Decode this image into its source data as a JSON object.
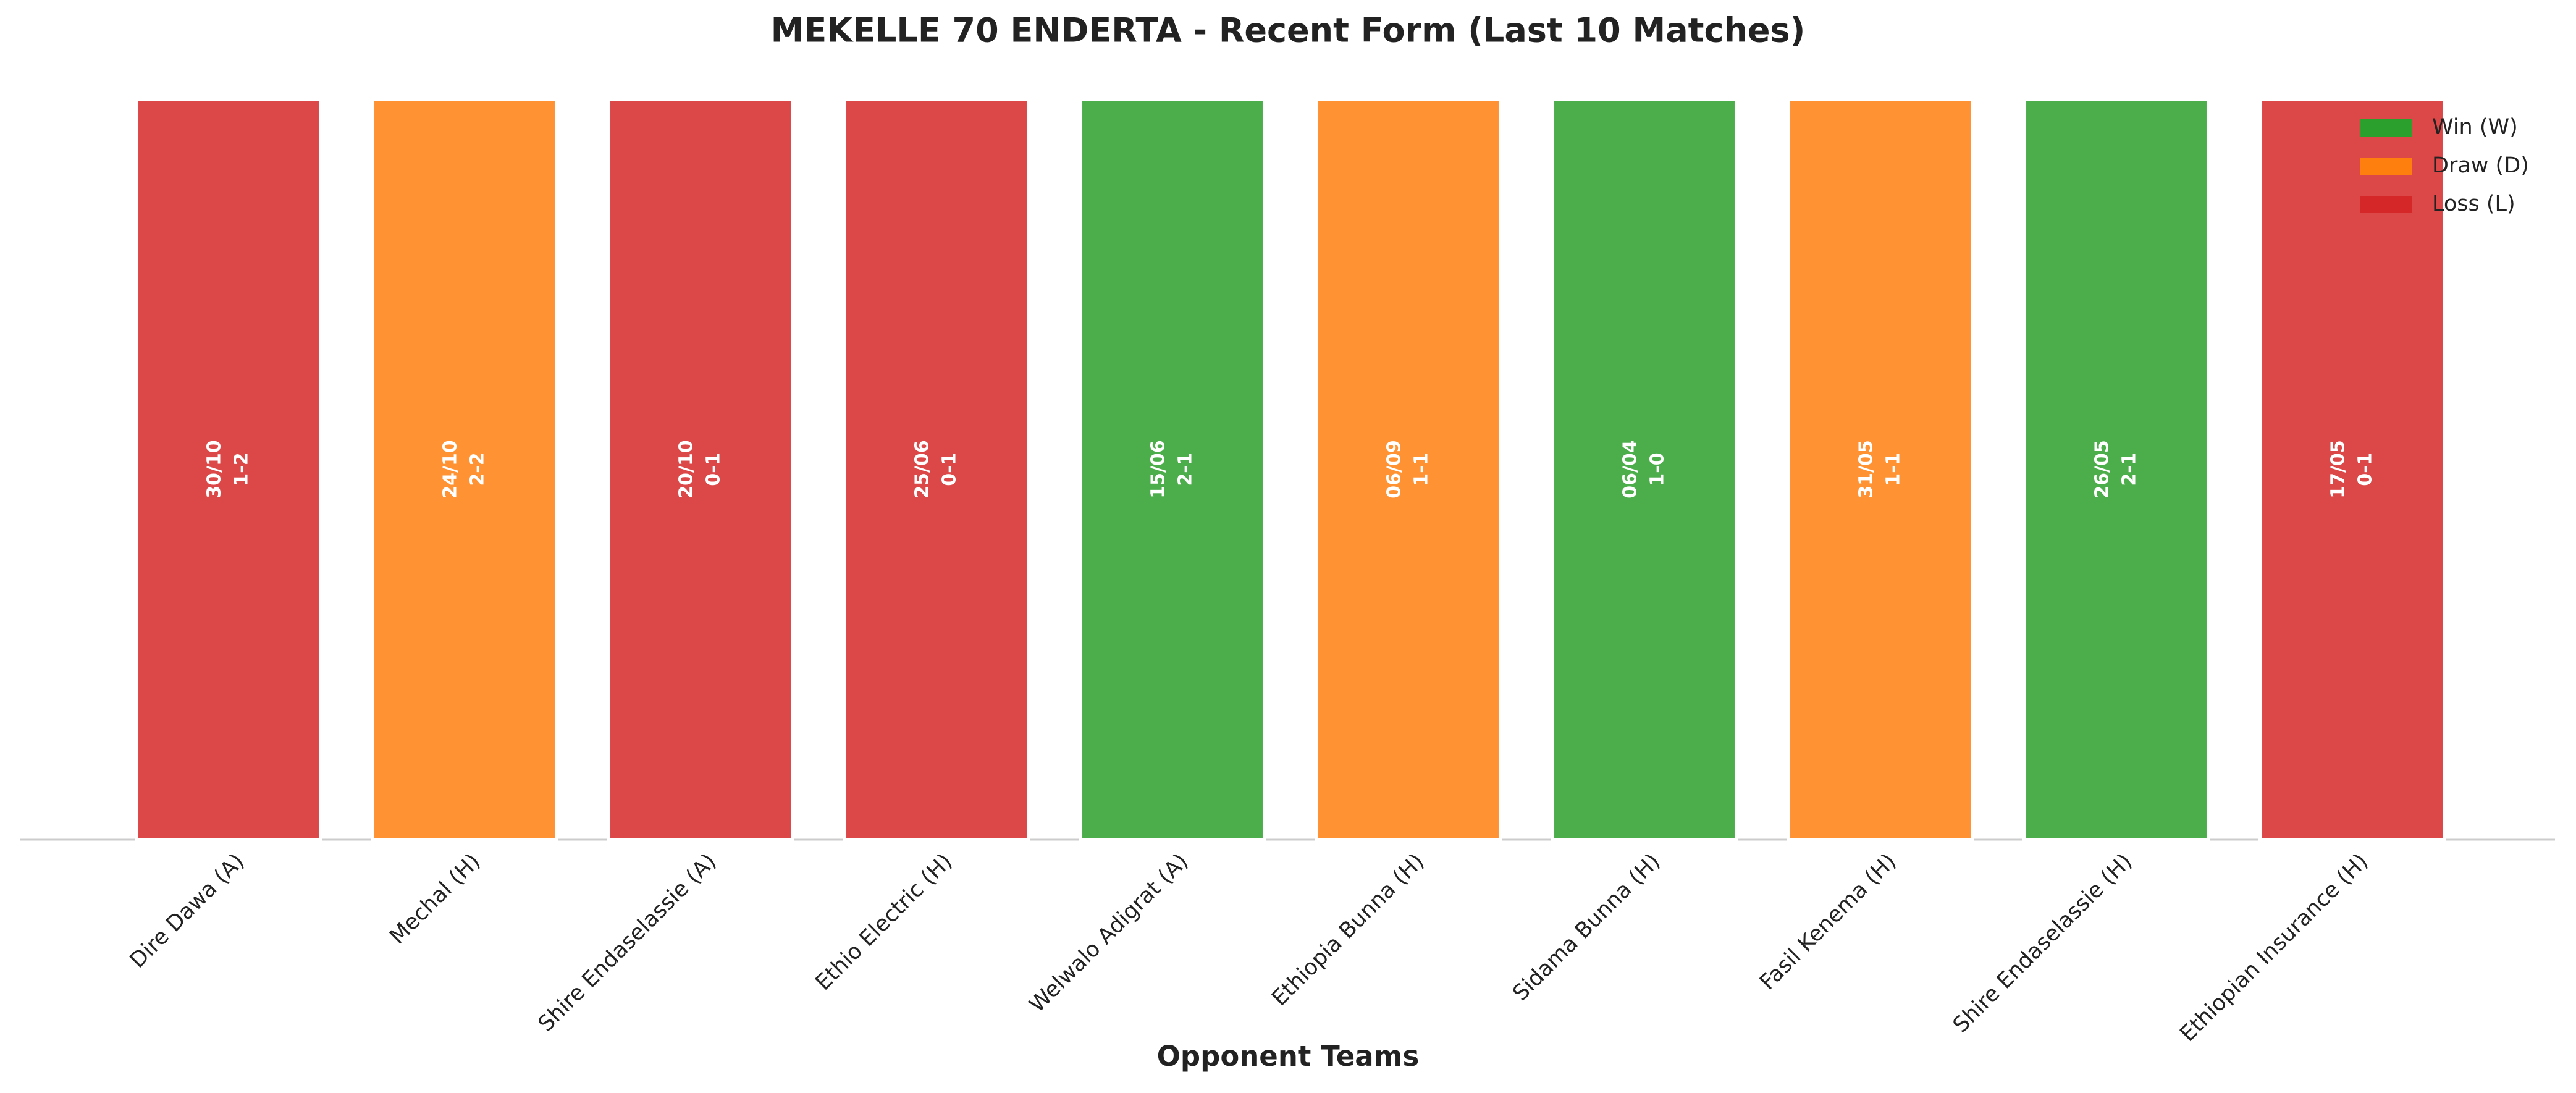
{
  "chart_data": {
    "type": "bar",
    "title": "MEKELLE 70 ENDERTA - Recent Form (Last 10 Matches)",
    "xlabel": "Opponent Teams",
    "categories": [
      "Dire Dawa (A)",
      "Mechal (H)",
      "Shire Endaselassie (A)",
      "Ethio Electric (H)",
      "Welwalo Adigrat (A)",
      "Ethiopia Bunna (H)",
      "Sidama Bunna (H)",
      "Fasil Kenema (H)",
      "Shire Endaselassie (H)",
      "Ethiopian Insurance (H)"
    ],
    "values": [
      1,
      1,
      1,
      1,
      1,
      1,
      1,
      1,
      1,
      1
    ],
    "bar_labels": [
      [
        "30/10",
        "1-2"
      ],
      [
        "24/10",
        "2-2"
      ],
      [
        "20/10",
        "0-1"
      ],
      [
        "25/06",
        "0-1"
      ],
      [
        "15/06",
        "2-1"
      ],
      [
        "06/09",
        "1-1"
      ],
      [
        "06/04",
        "1-0"
      ],
      [
        "31/05",
        "1-1"
      ],
      [
        "26/05",
        "2-1"
      ],
      [
        "17/05",
        "0-1"
      ]
    ],
    "bar_colors": [
      "#d62728",
      "#ff7f0e",
      "#d62728",
      "#d62728",
      "#2ca02c",
      "#ff7f0e",
      "#2ca02c",
      "#ff7f0e",
      "#2ca02c",
      "#d62728"
    ],
    "ylim": [
      0,
      1
    ],
    "legend": [
      {
        "label": "Win (W)",
        "color": "#2ca02c"
      },
      {
        "label": "Draw (D)",
        "color": "#ff7f0e"
      },
      {
        "label": "Loss (L)",
        "color": "#d62728"
      }
    ],
    "legend_position": "upper right"
  }
}
